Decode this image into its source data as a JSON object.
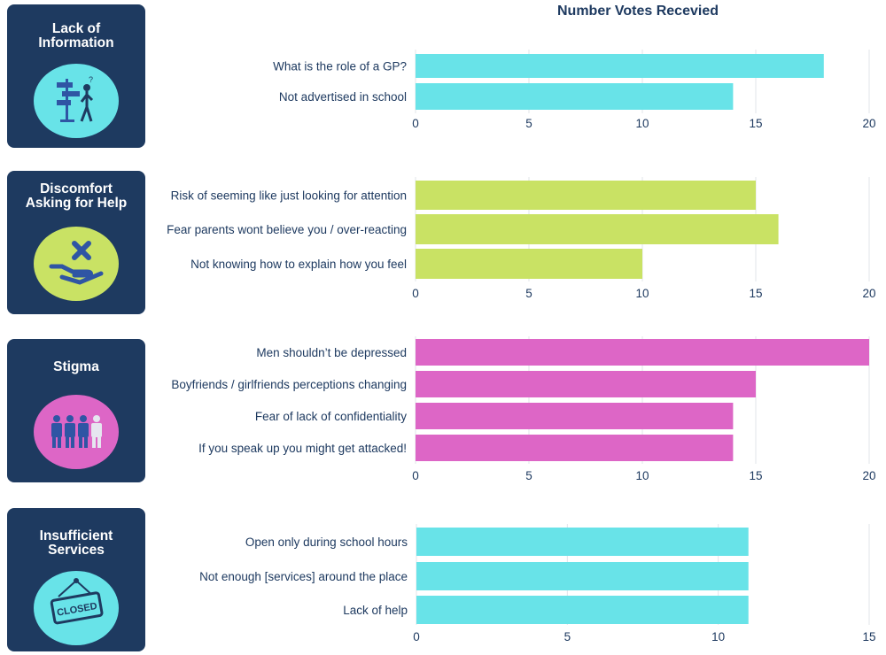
{
  "title": "Number Votes Recevied",
  "colors": {
    "card_bg": "#1e3a60",
    "cyan": "#68e3e8",
    "lime": "#c9e264",
    "magenta": "#dd66c6",
    "text": "#1e3a60"
  },
  "cards": [
    {
      "title_lines": [
        "Lack of",
        "Information"
      ],
      "icon": "signpost-confused-person-icon",
      "icon_color": "cyan"
    },
    {
      "title_lines": [
        "Discomfort",
        "Asking for Help"
      ],
      "icon": "hand-with-cross-icon",
      "icon_color": "lime"
    },
    {
      "title_lines": [
        "Stigma"
      ],
      "icon": "people-group-icon",
      "icon_color": "magenta"
    },
    {
      "title_lines": [
        "Insufficient",
        "Services"
      ],
      "icon": "closed-sign-icon",
      "icon_color": "cyan"
    }
  ],
  "chart_data": [
    {
      "type": "bar",
      "orientation": "horizontal",
      "category_group": "Lack of Information",
      "categories": [
        "What is the role of a GP?",
        "Not advertised in school"
      ],
      "values": [
        18,
        14
      ],
      "xlim": [
        0,
        20
      ],
      "xticks": [
        0,
        5,
        10,
        15,
        20
      ],
      "grid": true,
      "color": "#68e3e8"
    },
    {
      "type": "bar",
      "orientation": "horizontal",
      "category_group": "Discomfort Asking for Help",
      "categories": [
        "Risk of seeming like just looking for attention",
        "Fear parents wont believe you / over-reacting",
        "Not knowing how to explain how you feel"
      ],
      "values": [
        15,
        16,
        10
      ],
      "xlim": [
        0,
        20
      ],
      "xticks": [
        0,
        5,
        10,
        15,
        20
      ],
      "grid": true,
      "color": "#c9e264"
    },
    {
      "type": "bar",
      "orientation": "horizontal",
      "category_group": "Stigma",
      "categories": [
        "Men shouldn’t be depressed",
        "Boyfriends / girlfriends perceptions changing",
        "Fear of lack of confidentiality",
        "If you speak up you might get attacked!"
      ],
      "values": [
        20,
        15,
        14,
        14
      ],
      "xlim": [
        0,
        20
      ],
      "xticks": [
        0,
        5,
        10,
        15,
        20
      ],
      "grid": true,
      "color": "#dd66c6"
    },
    {
      "type": "bar",
      "orientation": "horizontal",
      "category_group": "Insufficient Services",
      "categories": [
        "Open only during school hours",
        "Not enough [services] around the place",
        "Lack of help"
      ],
      "values": [
        11,
        11,
        11
      ],
      "xlim": [
        0,
        15
      ],
      "xticks": [
        0,
        5,
        10,
        15
      ],
      "grid": true,
      "color": "#68e3e8"
    }
  ]
}
